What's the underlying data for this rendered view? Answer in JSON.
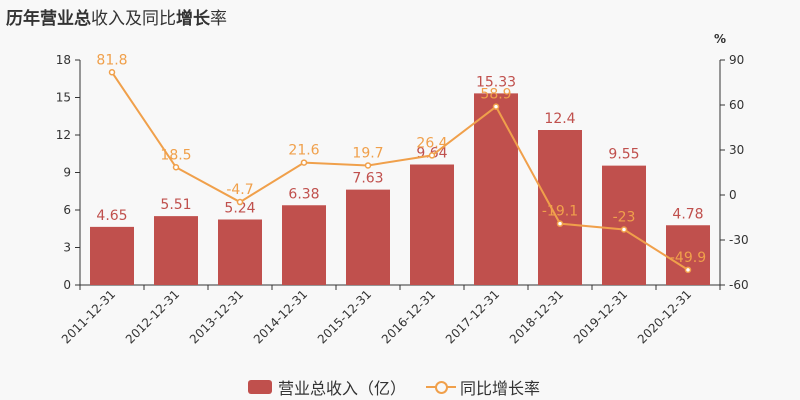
{
  "title": {
    "part1": "历年",
    "part2": "营业总",
    "part3": "收入及同比",
    "part4": "增长",
    "part5": "率"
  },
  "legend": {
    "bar_label": "营业总收入（亿）",
    "line_label": "同比增长率"
  },
  "colors": {
    "bar": "#c0504d",
    "line": "#f0a04b",
    "axis": "#333333"
  },
  "chart_data": {
    "type": "bar",
    "categories": [
      "2011-12-31",
      "2012-12-31",
      "2013-12-31",
      "2014-12-31",
      "2015-12-31",
      "2016-12-31",
      "2017-12-31",
      "2018-12-31",
      "2019-12-31",
      "2020-12-31"
    ],
    "series": [
      {
        "name": "营业总收入（亿）",
        "type": "bar",
        "axis": "left",
        "values": [
          4.65,
          5.51,
          5.24,
          6.38,
          7.63,
          9.64,
          15.33,
          12.4,
          9.55,
          4.78
        ],
        "labels": [
          "4.65",
          "5.51",
          "5.24",
          "6.38",
          "7.63",
          "9.64",
          "15.33",
          "12.4",
          "9.55",
          "4.78"
        ]
      },
      {
        "name": "同比增长率",
        "type": "line",
        "axis": "right",
        "values": [
          81.8,
          18.5,
          -4.7,
          21.6,
          19.7,
          26.4,
          58.9,
          -19.1,
          -23,
          -49.9
        ],
        "labels": [
          "81.8",
          "18.5",
          "-4.7",
          "21.6",
          "19.7",
          "26.4",
          "58.9",
          "-19.1",
          "-23",
          "-49.9"
        ]
      }
    ],
    "y_left": {
      "min": 0,
      "max": 18,
      "ticks": [
        0,
        3,
        6,
        9,
        12,
        15,
        18
      ]
    },
    "y_right": {
      "min": -60,
      "max": 90,
      "ticks": [
        -60,
        -30,
        0,
        30,
        60,
        90
      ],
      "unit": "%"
    },
    "grid": false,
    "legend_position": "bottom"
  }
}
